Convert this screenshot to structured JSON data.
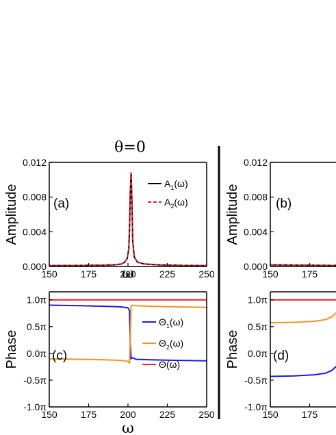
{
  "figure": {
    "title_left": "θ=0",
    "divider_color": "#000000"
  },
  "chart_data": [
    {
      "id": "a",
      "type": "line",
      "panel_label": "(a)",
      "xlabel": "ω",
      "ylabel": "Amplitude",
      "xlim": [
        150,
        250
      ],
      "ylim": [
        0,
        0.012
      ],
      "xticks": [
        150,
        175,
        200,
        225,
        250
      ],
      "xtick_labels": [
        "150",
        "175",
        "200",
        "225",
        "250"
      ],
      "yticks": [
        0,
        0.004,
        0.008,
        0.012
      ],
      "ytick_labels": [
        "0.000",
        "0.004",
        "0.008",
        "0.012"
      ],
      "legend_position": "top-right",
      "series": [
        {
          "name": "A",
          "sub": "1",
          "suffix": "(ω)",
          "color": "#000000",
          "dash": "solid",
          "x": [
            150,
            170,
            185,
            192,
            196,
            198,
            199.5,
            200.5,
            201,
            201.5,
            202,
            202.5,
            203,
            204,
            206,
            210,
            220,
            235,
            250
          ],
          "y": [
            0.0001,
            0.00012,
            0.00015,
            0.0002,
            0.0003,
            0.0005,
            0.0009,
            0.002,
            0.0045,
            0.0085,
            0.0108,
            0.0075,
            0.003,
            0.0011,
            0.0005,
            0.0003,
            0.00018,
            0.00012,
            0.0001
          ]
        },
        {
          "name": "A",
          "sub": "2",
          "suffix": "(ω)",
          "color": "#e0202a",
          "dash": "dashed",
          "x": [
            150,
            170,
            185,
            192,
            196,
            198,
            199.5,
            200.5,
            201,
            201.5,
            202,
            202.5,
            203,
            204,
            206,
            210,
            220,
            235,
            250
          ],
          "y": [
            0.0001,
            0.00012,
            0.00015,
            0.0002,
            0.0003,
            0.0005,
            0.0009,
            0.002,
            0.0045,
            0.0085,
            0.0108,
            0.0075,
            0.003,
            0.0011,
            0.0005,
            0.0003,
            0.00018,
            0.00012,
            0.0001
          ]
        }
      ]
    },
    {
      "id": "b",
      "type": "line",
      "panel_label": "(b)",
      "ylabel": "Amplitude",
      "xlim": [
        150,
        250
      ],
      "ylim": [
        0,
        0.012
      ],
      "xticks": [
        150,
        175
      ],
      "xtick_labels": [
        "150",
        "175"
      ],
      "yticks": [
        0,
        0.004,
        0.008,
        0.012
      ],
      "ytick_labels": [
        "0.000",
        "0.004",
        "0.008",
        "0.012"
      ],
      "series": [
        {
          "color": "#000000",
          "dash": "solid",
          "x": [
            150,
            170,
            190,
            192
          ],
          "y": [
            0.00018,
            0.00015,
            0.00012,
            0.00012
          ]
        },
        {
          "color": "#e0202a",
          "dash": "dashed",
          "x": [
            150,
            170,
            190,
            192
          ],
          "y": [
            0.00018,
            0.00015,
            0.00012,
            0.00012
          ]
        }
      ]
    },
    {
      "id": "c",
      "type": "line",
      "panel_label": "(c)",
      "xlabel": "ω",
      "ylabel": "Phase",
      "xlim": [
        150,
        250
      ],
      "ylim": [
        -1.0,
        1.15
      ],
      "xticks": [
        150,
        175,
        200,
        225,
        250
      ],
      "xtick_labels": [
        "150",
        "175",
        "200",
        "225",
        "250"
      ],
      "yticks": [
        -1.0,
        -0.5,
        0.0,
        0.5,
        1.0
      ],
      "ytick_labels": [
        "-1.0π",
        "-0.5π",
        "0.0π",
        "0.5π",
        "1.0π"
      ],
      "legend_position": "right",
      "series": [
        {
          "name": "Θ",
          "sub": "1",
          "suffix": "(ω)",
          "color": "#1a1adf",
          "x": [
            150,
            170,
            185,
            195,
            198,
            200,
            201,
            201.5,
            202,
            203,
            205,
            215,
            230,
            250
          ],
          "y": [
            0.9,
            0.89,
            0.88,
            0.87,
            0.86,
            0.85,
            0.8,
            0.2,
            -0.1,
            -0.08,
            -0.11,
            -0.12,
            -0.13,
            -0.14
          ]
        },
        {
          "name": "Θ",
          "sub": "2",
          "suffix": "(ω)",
          "color": "#f59320",
          "x": [
            150,
            170,
            185,
            195,
            198,
            200,
            201,
            201.5,
            202,
            203,
            205,
            215,
            230,
            250
          ],
          "y": [
            -0.1,
            -0.11,
            -0.12,
            -0.13,
            -0.14,
            -0.15,
            -0.18,
            0.3,
            0.88,
            0.9,
            0.89,
            0.88,
            0.87,
            0.86
          ]
        },
        {
          "name": "Θ",
          "sub": "",
          "suffix": "(ω)",
          "color": "#e0202a",
          "x": [
            150,
            250
          ],
          "y": [
            1.0,
            1.0
          ]
        }
      ]
    },
    {
      "id": "d",
      "type": "line",
      "panel_label": "(d)",
      "ylabel": "Phase",
      "xlim": [
        150,
        250
      ],
      "ylim": [
        -1.0,
        1.15
      ],
      "xticks": [
        150,
        175
      ],
      "xtick_labels": [
        "150",
        "175"
      ],
      "yticks": [
        -1.0,
        -0.5,
        0.0,
        0.5,
        1.0
      ],
      "ytick_labels": [
        "-1.0π",
        "-0.5π",
        "0.0π",
        "0.5π",
        "1.0π"
      ],
      "series": [
        {
          "color": "#e0202a",
          "x": [
            150,
            192
          ],
          "y": [
            1.0,
            1.0
          ]
        },
        {
          "color": "#f59320",
          "x": [
            150,
            165,
            178,
            185,
            189,
            192
          ],
          "y": [
            0.57,
            0.58,
            0.6,
            0.63,
            0.68,
            0.76
          ]
        },
        {
          "color": "#1a1adf",
          "x": [
            150,
            165,
            178,
            185,
            189,
            192
          ],
          "y": [
            -0.43,
            -0.42,
            -0.4,
            -0.37,
            -0.32,
            -0.24
          ]
        }
      ]
    }
  ]
}
